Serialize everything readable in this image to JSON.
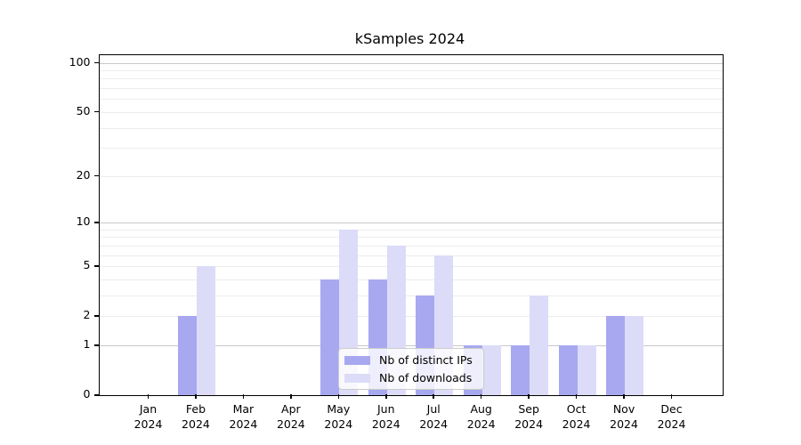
{
  "title": "kSamples 2024",
  "chart_data": {
    "type": "bar",
    "title": "kSamples 2024",
    "categories": [
      "Jan",
      "Feb",
      "Mar",
      "Apr",
      "May",
      "Jun",
      "Jul",
      "Aug",
      "Sep",
      "Oct",
      "Nov",
      "Dec"
    ],
    "x_year_label": "2024",
    "series": [
      {
        "name": "Nb of distinct IPs",
        "color": "#a8a8f0",
        "values": [
          0,
          2,
          0,
          0,
          4,
          4,
          3,
          1,
          1,
          1,
          2,
          0
        ]
      },
      {
        "name": "Nb of downloads",
        "color": "#dcdcf8",
        "values": [
          0,
          5,
          0,
          0,
          9,
          7,
          6,
          1,
          3,
          1,
          2,
          0
        ]
      }
    ],
    "yscale": "log1p",
    "ylim": [
      0,
      112
    ],
    "y_ticks": [
      0,
      1,
      2,
      5,
      10,
      20,
      50,
      100
    ],
    "y_major_gridlines": [
      1,
      10,
      100
    ],
    "y_minor_gridlines": [
      2,
      3,
      4,
      5,
      6,
      7,
      8,
      9,
      20,
      30,
      40,
      50,
      60,
      70,
      80,
      90
    ],
    "grid": "horizontal",
    "legend_position": "lower center"
  },
  "colors": {
    "spine": "#000000",
    "major_grid": "#c9c9cd",
    "minor_grid": "#ececec",
    "background": "#ffffff"
  }
}
